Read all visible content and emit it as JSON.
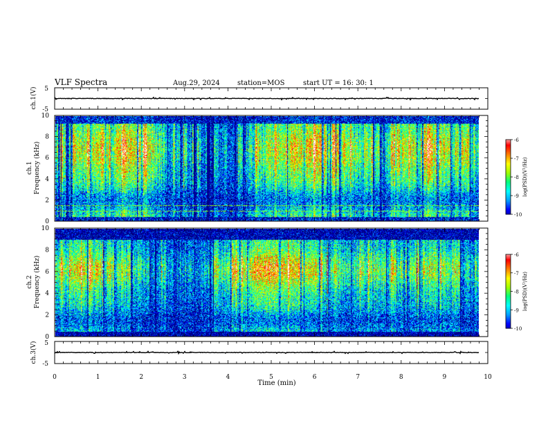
{
  "header": {
    "title": "VLF Spectra",
    "date": "Aug.29, 2024",
    "station": "station=MOS",
    "start": "start  UT =   16: 30: 1"
  },
  "chart_data": [
    {
      "type": "line",
      "name": "ch.1 waveform",
      "ylabel": "ch.1(V)",
      "ylim": [
        -5,
        5
      ],
      "yticks": [
        "5",
        "-5"
      ],
      "baseline": 0
    },
    {
      "type": "heatmap",
      "name": "ch.1 spectrogram",
      "ylabel_top": "ch.1",
      "ylabel": "Frequency (kHz)",
      "ylim": [
        0,
        10
      ],
      "yticks": [
        "0",
        "2",
        "4",
        "6",
        "8",
        "10"
      ],
      "xlim": [
        0,
        10
      ],
      "data_end_min": 9.8,
      "colorbar": {
        "label": "log(PSD)(V²/Hz)",
        "range": [
          -10,
          -6
        ],
        "ticks": [
          "-6",
          "-7",
          "-8",
          "-9",
          "-10"
        ]
      }
    },
    {
      "type": "heatmap",
      "name": "ch.2 spectrogram",
      "ylabel_top": "ch.2",
      "ylabel": "Frequency (kHz)",
      "ylim": [
        0,
        10
      ],
      "yticks": [
        "0",
        "2",
        "4",
        "6",
        "8",
        "10"
      ],
      "xlim": [
        0,
        10
      ],
      "data_end_min": 9.8,
      "colorbar": {
        "label": "log(PSD)(V²/Hz)",
        "range": [
          -10,
          -6
        ],
        "ticks": [
          "-6",
          "-7",
          "-8",
          "-9",
          "-10"
        ]
      }
    },
    {
      "type": "line",
      "name": "ch.3 waveform",
      "ylabel": "ch.3(V)",
      "ylim": [
        -5,
        5
      ],
      "yticks": [
        "5",
        "-5"
      ],
      "baseline": 0
    }
  ],
  "xaxis": {
    "label": "Time  (min)",
    "range": [
      0,
      10
    ],
    "ticks": [
      "0",
      "1",
      "2",
      "3",
      "4",
      "5",
      "6",
      "7",
      "8",
      "9",
      "10"
    ]
  },
  "colors": {
    "colormap": [
      "#000080",
      "#0000ff",
      "#00a0ff",
      "#00ffff",
      "#00ff80",
      "#a0ff00",
      "#ffff00",
      "#ff8000",
      "#ff0000",
      "#ffffff"
    ]
  }
}
